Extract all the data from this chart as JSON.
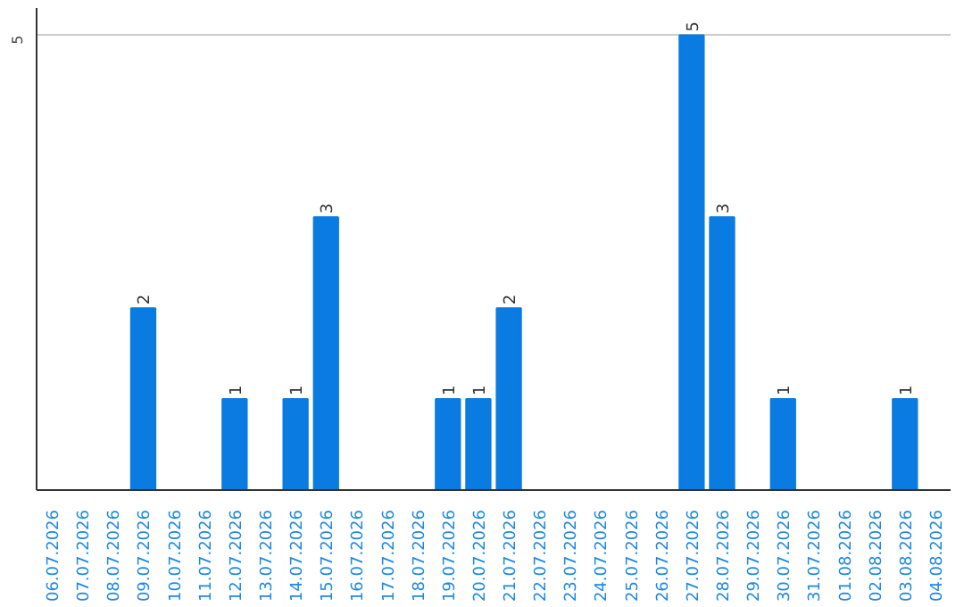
{
  "chart_data": {
    "type": "bar",
    "categories": [
      "06.07.2026",
      "07.07.2026",
      "08.07.2026",
      "09.07.2026",
      "10.07.2026",
      "11.07.2026",
      "12.07.2026",
      "13.07.2026",
      "14.07.2026",
      "15.07.2026",
      "16.07.2026",
      "17.07.2026",
      "18.07.2026",
      "19.07.2026",
      "20.07.2026",
      "21.07.2026",
      "22.07.2026",
      "23.07.2026",
      "24.07.2026",
      "25.07.2026",
      "26.07.2026",
      "27.07.2026",
      "28.07.2026",
      "29.07.2026",
      "30.07.2026",
      "31.07.2026",
      "01.08.2026",
      "02.08.2026",
      "03.08.2026",
      "04.08.2026"
    ],
    "values": [
      0,
      0,
      0,
      2,
      0,
      0,
      1,
      0,
      1,
      3,
      0,
      0,
      0,
      1,
      1,
      2,
      0,
      0,
      0,
      0,
      0,
      5,
      3,
      0,
      1,
      0,
      0,
      0,
      1,
      0
    ],
    "color": "#0a7be0",
    "ylim": [
      0,
      5.3
    ],
    "yticks": [
      5
    ],
    "value_labels": [
      null,
      null,
      null,
      "2",
      null,
      null,
      "1",
      null,
      "1",
      "3",
      null,
      null,
      null,
      "1",
      "1",
      "2",
      null,
      null,
      null,
      null,
      null,
      "5",
      "3",
      null,
      "1",
      null,
      null,
      null,
      "1",
      null
    ],
    "grid": "y"
  }
}
